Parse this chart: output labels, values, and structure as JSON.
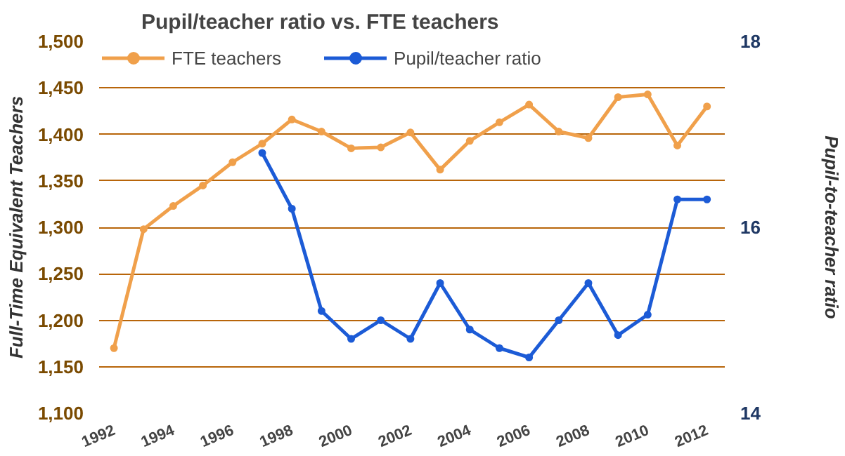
{
  "chart_data": {
    "type": "line",
    "title": "Pupil/teacher ratio vs. FTE teachers",
    "ylabel": "Full-Time Equivalent Teachers",
    "y2label": "Pupil-to-teacher ratio",
    "x": [
      1992,
      1993,
      1994,
      1995,
      1996,
      1997,
      1998,
      1999,
      2000,
      2001,
      2002,
      2003,
      2004,
      2005,
      2006,
      2007,
      2008,
      2009,
      2010,
      2011,
      2012
    ],
    "series": [
      {
        "name": "FTE teachers",
        "color": "#f0a04b",
        "values": [
          1170,
          1298,
          1323,
          1345,
          1370,
          1390,
          1416,
          1403,
          1385,
          1386,
          1402,
          1362,
          1393,
          1413,
          1432,
          1403,
          1396,
          1440,
          1443,
          1388,
          1430
        ]
      },
      {
        "name": "Pupil/teacher ratio",
        "color": "#1c5bd6",
        "axis": "y2",
        "values": [
          null,
          null,
          null,
          null,
          null,
          16.8,
          16.2,
          15.1,
          14.8,
          15.0,
          14.8,
          15.4,
          14.9,
          14.7,
          14.6,
          15.0,
          15.4,
          14.84,
          15.06,
          16.3,
          16.3
        ]
      }
    ],
    "xlim": [
      1991.5,
      2012.6
    ],
    "xticks": [
      1992,
      1994,
      1996,
      1998,
      2000,
      2002,
      2004,
      2006,
      2008,
      2010,
      2012
    ],
    "ylim": [
      1100,
      1500
    ],
    "yticks": [
      {
        "value": 1100,
        "label": "1,100"
      },
      {
        "value": 1150,
        "label": "1,150"
      },
      {
        "value": 1200,
        "label": "1,200"
      },
      {
        "value": 1250,
        "label": "1,250"
      },
      {
        "value": 1300,
        "label": "1,300"
      },
      {
        "value": 1350,
        "label": "1,350"
      },
      {
        "value": 1400,
        "label": "1,400"
      },
      {
        "value": 1450,
        "label": "1,450"
      },
      {
        "value": 1500,
        "label": "1,500"
      }
    ],
    "y2lim": [
      14,
      18
    ],
    "y2ticks": [
      14,
      16,
      18
    ],
    "grid": "y",
    "legend": "top left",
    "marker": "circle",
    "line_style": "solid"
  }
}
